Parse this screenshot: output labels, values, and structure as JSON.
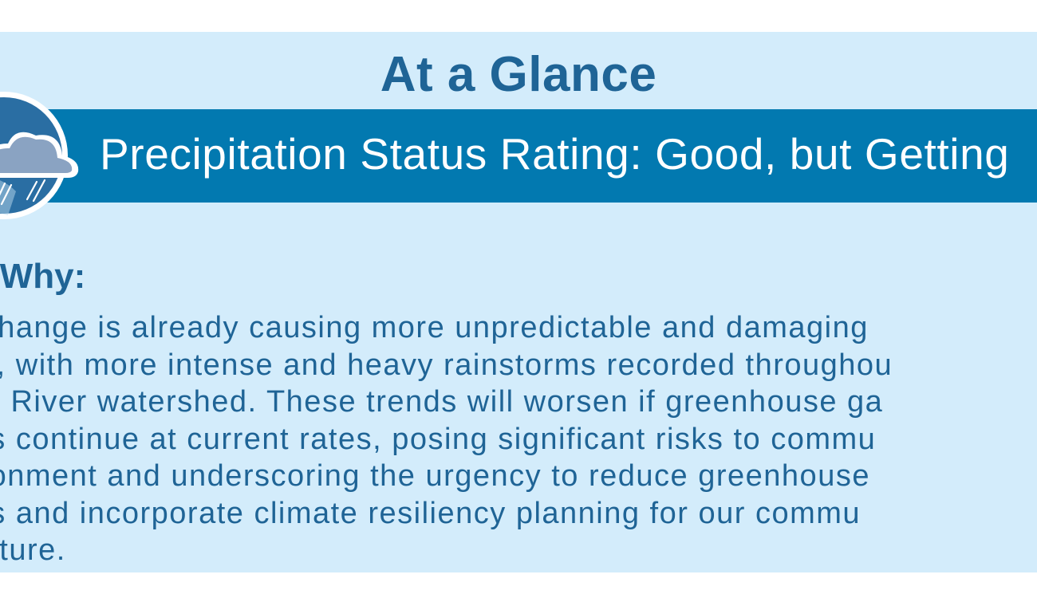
{
  "title": "At a Glance",
  "banner": {
    "text": "Precipitation Status Rating: Good, but Getting",
    "icon": "rain-cloud-icon"
  },
  "why": {
    "heading": "s Why:",
    "lines": [
      "e change is already causing more unpredictable and damaging",
      "ms, with more intense and heavy rainstorms recorded throughou",
      "are River watershed. These trends will worsen if greenhouse ga",
      "ons continue at current rates, posing significant risks to commu",
      "vironment and underscoring the urgency to reduce greenhouse",
      "ons and incorporate climate resiliency planning for our commu",
      "ructure."
    ]
  },
  "colors": {
    "panel_bg": "#d3ecfb",
    "banner_bg": "#0279b0",
    "heading_text": "#1f6496",
    "banner_text": "#ffffff"
  }
}
